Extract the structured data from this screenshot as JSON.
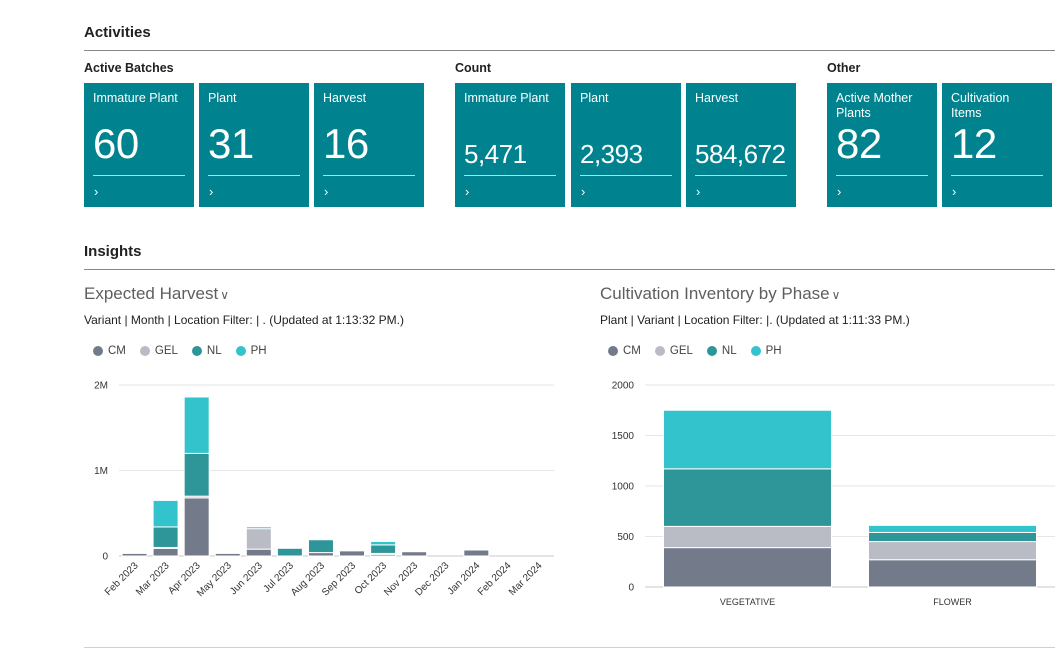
{
  "activities": {
    "title": "Activities",
    "groups": [
      {
        "title": "Active Batches",
        "tiles": [
          {
            "label": "Immature Plant",
            "value": "60"
          },
          {
            "label": "Plant",
            "value": "31"
          },
          {
            "label": "Harvest",
            "value": "16"
          }
        ]
      },
      {
        "title": "Count",
        "tiles": [
          {
            "label": "Immature Plant",
            "value": "5,471"
          },
          {
            "label": "Plant",
            "value": "2,393"
          },
          {
            "label": "Harvest",
            "value": "584,672"
          }
        ]
      },
      {
        "title": "Other",
        "tiles": [
          {
            "label": "Active Mother Plants",
            "value": "82"
          },
          {
            "label": "Cultivation Items",
            "value": "12"
          }
        ]
      }
    ],
    "chevron": "›"
  },
  "insights": {
    "title": "Insights"
  },
  "colors": {
    "CM": "#737b8a",
    "GEL": "#b9bcc4",
    "NL": "#2e9599",
    "PH": "#33c3cc"
  },
  "chart_data": [
    {
      "type": "bar",
      "stacked": true,
      "title": "Expected Harvest",
      "subtitle": "Variant | Month | Location Filter:  | . (Updated at  1:13:32 PM.)",
      "legend": [
        "CM",
        "GEL",
        "NL",
        "PH"
      ],
      "legend_position": "top-left",
      "categories": [
        "Feb 2023",
        "Mar 2023",
        "Apr 2023",
        "May 2023",
        "Jun 2023",
        "Jul 2023",
        "Aug 2023",
        "Sep 2023",
        "Oct 2023",
        "Nov 2023",
        "Dec 2023",
        "Jan 2024",
        "Feb 2024",
        "Mar 2024"
      ],
      "series": [
        {
          "name": "CM",
          "values": [
            30000,
            90000,
            680000,
            30000,
            80000,
            0,
            40000,
            60000,
            20000,
            50000,
            0,
            70000,
            0,
            0
          ]
        },
        {
          "name": "GEL",
          "values": [
            0,
            10000,
            20000,
            0,
            240000,
            0,
            0,
            0,
            10000,
            0,
            0,
            0,
            0,
            0
          ]
        },
        {
          "name": "NL",
          "values": [
            0,
            240000,
            500000,
            0,
            20000,
            90000,
            150000,
            0,
            100000,
            0,
            0,
            0,
            0,
            0
          ]
        },
        {
          "name": "PH",
          "values": [
            0,
            310000,
            660000,
            0,
            10000,
            0,
            0,
            0,
            40000,
            0,
            0,
            0,
            0,
            0
          ]
        }
      ],
      "yticks": [
        "0",
        "1M",
        "2M"
      ],
      "ylim": [
        0,
        2000000
      ],
      "grid": true
    },
    {
      "type": "bar",
      "stacked": true,
      "title": "Cultivation Inventory by Phase",
      "subtitle": "Plant | Variant | Location Filter:  |. (Updated at  1:11:33 PM.)",
      "legend": [
        "CM",
        "GEL",
        "NL",
        "PH"
      ],
      "legend_position": "top-left",
      "categories": [
        "VEGETATIVE",
        "FLOWER"
      ],
      "series": [
        {
          "name": "CM",
          "values": [
            390,
            270
          ]
        },
        {
          "name": "GEL",
          "values": [
            210,
            180
          ]
        },
        {
          "name": "NL",
          "values": [
            570,
            90
          ]
        },
        {
          "name": "PH",
          "values": [
            580,
            70
          ]
        }
      ],
      "yticks": [
        "0",
        "500",
        "1000",
        "1500",
        "2000"
      ],
      "ylim": [
        0,
        2000
      ],
      "grid": true
    }
  ]
}
